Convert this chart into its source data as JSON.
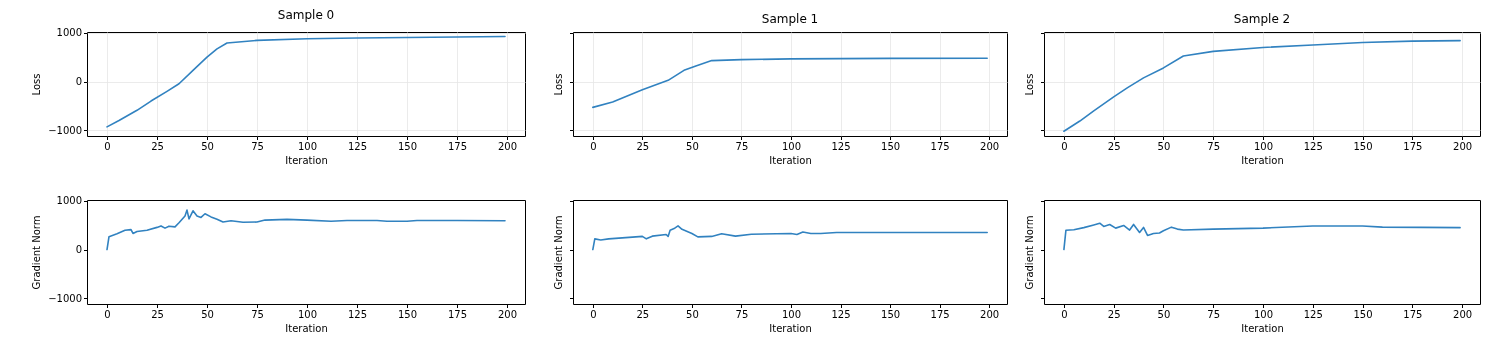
{
  "chart_data": [
    {
      "type": "line",
      "title": "Sample 0",
      "xlabel": "Iteration",
      "ylabel": "Loss",
      "grid": true,
      "xlim": [
        -10,
        209
      ],
      "ylim": [
        -1117,
        1017
      ],
      "xticks": [
        0,
        25,
        50,
        75,
        100,
        125,
        150,
        175,
        200
      ],
      "yticks": [
        -1000,
        0,
        1000
      ],
      "x": [
        0,
        6,
        15,
        22,
        30,
        36,
        43,
        50,
        55,
        60,
        75,
        100,
        125,
        150,
        175,
        199
      ],
      "series": [
        {
          "color": "#3182c0",
          "values": [
            -930,
            -800,
            -590,
            -400,
            -200,
            -45,
            230,
            500,
            670,
            790,
            845,
            880,
            895,
            905,
            915,
            925
          ]
        }
      ]
    },
    {
      "type": "line",
      "title": "Sample 1",
      "xlabel": "Iteration",
      "ylabel": "Loss",
      "grid": true,
      "tick_labels": "x",
      "xlim": [
        -10,
        209
      ],
      "ylim": [
        -1117,
        1017
      ],
      "xticks": [
        0,
        25,
        50,
        75,
        100,
        125,
        150,
        175,
        200
      ],
      "yticks": [
        -1000,
        0,
        1000
      ],
      "x": [
        0,
        10,
        25,
        38,
        46,
        52,
        60,
        75,
        100,
        150,
        199
      ],
      "series": [
        {
          "color": "#3182c0",
          "values": [
            -530,
            -420,
            -170,
            25,
            230,
            320,
            430,
            450,
            465,
            475,
            478
          ]
        }
      ]
    },
    {
      "type": "line",
      "title": "Sample 2",
      "xlabel": "Iteration",
      "ylabel": "Loss",
      "grid": true,
      "tick_labels": "x",
      "xlim": [
        -10,
        209
      ],
      "ylim": [
        -1117,
        1017
      ],
      "xticks": [
        0,
        25,
        50,
        75,
        100,
        125,
        150,
        175,
        200
      ],
      "yticks": [
        -1000,
        0,
        1000
      ],
      "x": [
        0,
        8,
        15,
        25,
        32,
        40,
        50,
        60,
        75,
        100,
        125,
        150,
        175,
        199
      ],
      "series": [
        {
          "color": "#3182c0",
          "values": [
            -1020,
            -810,
            -600,
            -315,
            -125,
            75,
            280,
            525,
            620,
            700,
            750,
            800,
            830,
            840
          ]
        }
      ]
    },
    {
      "type": "line",
      "xlabel": "Iteration",
      "ylabel": "Gradient Norm",
      "xlim": [
        -10,
        209
      ],
      "ylim": [
        -1117,
        1017
      ],
      "xticks": [
        0,
        25,
        50,
        75,
        100,
        125,
        150,
        175,
        200
      ],
      "yticks": [
        -1000,
        0,
        1000
      ],
      "x": [
        0,
        1,
        5,
        9,
        12,
        13,
        15,
        20,
        25,
        27,
        29,
        31,
        34,
        36,
        39,
        40,
        41,
        43,
        45,
        47,
        49,
        52,
        55,
        58,
        62,
        68,
        75,
        79,
        90,
        100,
        112,
        120,
        135,
        140,
        150,
        155,
        175,
        199
      ],
      "series": [
        {
          "color": "#3182c0",
          "values": [
            0,
            265,
            325,
            395,
            410,
            330,
            370,
            395,
            455,
            485,
            440,
            480,
            465,
            550,
            690,
            810,
            630,
            795,
            690,
            660,
            735,
            670,
            620,
            565,
            590,
            560,
            565,
            605,
            620,
            605,
            580,
            595,
            595,
            580,
            580,
            595,
            595,
            590
          ]
        }
      ]
    },
    {
      "type": "line",
      "xlabel": "Iteration",
      "ylabel": "Gradient Norm",
      "tick_labels": "x",
      "xlim": [
        -10,
        209
      ],
      "ylim": [
        -1117,
        1017
      ],
      "xticks": [
        0,
        25,
        50,
        75,
        100,
        125,
        150,
        175,
        200
      ],
      "yticks": [
        -1000,
        0,
        1000
      ],
      "x": [
        0,
        1,
        4,
        8,
        20,
        25,
        27,
        30,
        37,
        38,
        39,
        41,
        43,
        45,
        50,
        53,
        60,
        65,
        72,
        80,
        100,
        103,
        106,
        110,
        115,
        123,
        150,
        199
      ],
      "series": [
        {
          "color": "#3182c0",
          "values": [
            0,
            220,
            195,
            220,
            255,
            270,
            220,
            275,
            310,
            270,
            395,
            430,
            485,
            415,
            330,
            260,
            270,
            325,
            275,
            315,
            330,
            310,
            360,
            330,
            330,
            350,
            350,
            350
          ]
        }
      ]
    },
    {
      "type": "line",
      "xlabel": "Iteration",
      "ylabel": "Gradient Norm",
      "tick_labels": "x",
      "xlim": [
        -10,
        209
      ],
      "ylim": [
        -1117,
        1017
      ],
      "xticks": [
        0,
        25,
        50,
        75,
        100,
        125,
        150,
        175,
        200
      ],
      "yticks": [
        -1000,
        0,
        1000
      ],
      "x": [
        0,
        1,
        5,
        10,
        15,
        18,
        20,
        23,
        26,
        30,
        33,
        35,
        38,
        40,
        42,
        45,
        48,
        50,
        54,
        57,
        60,
        75,
        100,
        125,
        150,
        160,
        199
      ],
      "series": [
        {
          "color": "#3182c0",
          "values": [
            0,
            395,
            405,
            450,
            505,
            540,
            475,
            515,
            440,
            495,
            400,
            515,
            350,
            455,
            290,
            330,
            340,
            385,
            460,
            420,
            400,
            420,
            440,
            485,
            485,
            460,
            450
          ]
        }
      ]
    }
  ]
}
